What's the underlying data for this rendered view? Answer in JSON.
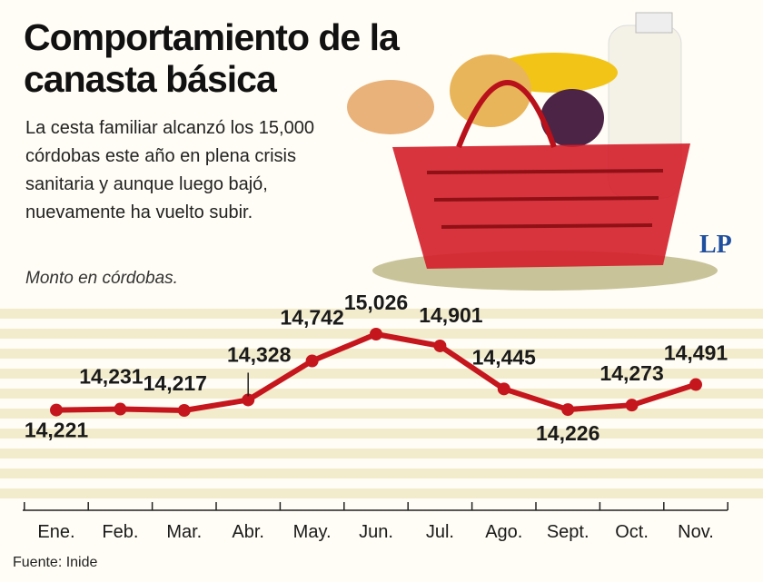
{
  "title": "Comportamiento de la canasta básica",
  "subtitle": "La cesta familiar alcanzó los 15,000 córdobas este año en plena crisis sanitaria y aunque luego bajó, nuevamente ha vuelto subir.",
  "note": "Monto en córdobas.",
  "source": "Fuente: Inide",
  "logo": "LP",
  "chart_data": {
    "type": "line",
    "categories": [
      "Ene.",
      "Feb.",
      "Mar.",
      "Abr.",
      "May.",
      "Jun.",
      "Jul.",
      "Ago.",
      "Sept.",
      "Oct.",
      "Nov."
    ],
    "values": [
      14221,
      14231,
      14217,
      14328,
      14742,
      15026,
      14901,
      14445,
      14226,
      14273,
      14491
    ],
    "value_labels": [
      "14,221",
      "14,231",
      "14,217",
      "14,328",
      "14,742",
      "15,026",
      "14,901",
      "14,445",
      "14,226",
      "14,273",
      "14,491"
    ],
    "color": "#c5161d"
  }
}
